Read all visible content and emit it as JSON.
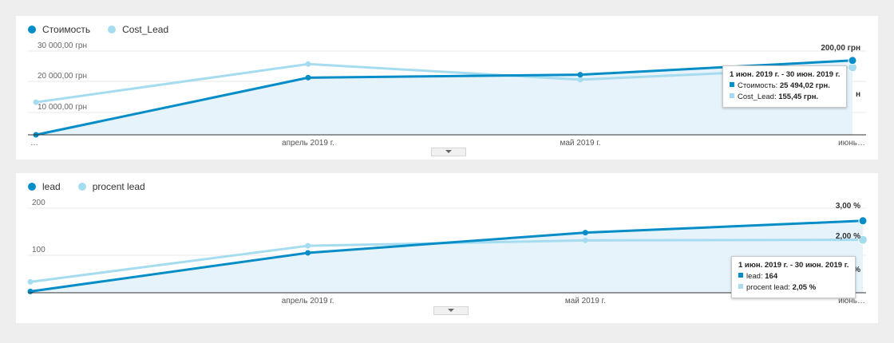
{
  "colors": {
    "primary": "#058dc7",
    "secondary": "#a6dcef",
    "fill": "#e6f3fa",
    "grid": "#eaeaea",
    "axis": "#333333"
  },
  "chart_data": [
    {
      "type": "line",
      "categories": [
        "…",
        "апрель 2019 г.",
        "май 2019 г.",
        "июнь…"
      ],
      "series": [
        {
          "name": "Стоимость",
          "axis": "left",
          "values": [
            0,
            19600,
            20600,
            25494.02
          ]
        },
        {
          "name": "Cost_Lead",
          "axis": "right",
          "values": [
            75,
            163,
            127,
            155.45
          ]
        }
      ],
      "yticks": [
        "30 000,00 грн",
        "20 000,00 грн",
        "10 000,00 грн"
      ],
      "ylim": [
        0,
        32000
      ],
      "right_axis_label": "200,00 грн",
      "right_ylim": [
        0,
        215
      ],
      "grid": true,
      "legend": "top-left",
      "tooltip": {
        "title": "1 июн. 2019 г. - 30 июн. 2019 г.",
        "rows": [
          {
            "label": "Стоимость:",
            "value": "25 494,02 грн."
          },
          {
            "label": "Cost_Lead:",
            "value": "155,45 грн."
          }
        ],
        "clipped_text": "н"
      }
    },
    {
      "type": "line",
      "categories": [
        "",
        "апрель 2019 г.",
        "май 2019 г.",
        "июнь…"
      ],
      "series": [
        {
          "name": "lead",
          "axis": "left",
          "values": [
            3,
            91,
            137,
            164
          ]
        },
        {
          "name": "procent lead",
          "axis": "right",
          "values": [
            0.42,
            1.82,
            2.03,
            2.05
          ]
        }
      ],
      "yticks": [
        "200",
        "100"
      ],
      "ylim": [
        0,
        200
      ],
      "right_ylim": [
        0,
        3.4
      ],
      "right_axis_labels": [
        "3,00 %",
        "2,00 %"
      ],
      "grid": true,
      "legend": "top-left",
      "tooltip": {
        "title": "1 июн. 2019 г. - 30 июн. 2019 г.",
        "rows": [
          {
            "label": "lead:",
            "value": "164"
          },
          {
            "label": "procent lead:",
            "value": "2,05 %"
          }
        ],
        "clipped_text": "%"
      }
    }
  ]
}
